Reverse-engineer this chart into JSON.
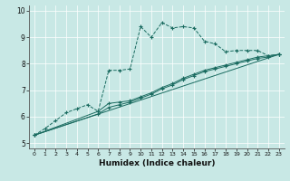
{
  "xlabel": "Humidex (Indice chaleur)",
  "bg_color": "#c8e8e5",
  "line_color": "#1a6b60",
  "grid_color": "#ffffff",
  "xlim": [
    -0.5,
    23.5
  ],
  "ylim": [
    4.8,
    10.2
  ],
  "xticks": [
    0,
    1,
    2,
    3,
    4,
    5,
    6,
    7,
    8,
    9,
    10,
    11,
    12,
    13,
    14,
    15,
    16,
    17,
    18,
    19,
    20,
    21,
    22,
    23
  ],
  "yticks": [
    5,
    6,
    7,
    8,
    9,
    10
  ],
  "series": [
    {
      "x": [
        0,
        1,
        2,
        3,
        4,
        5,
        6,
        7,
        8,
        9,
        10,
        11,
        12,
        13,
        14,
        15,
        16,
        17,
        18,
        19,
        20,
        21,
        22,
        23
      ],
      "y": [
        5.3,
        5.55,
        5.85,
        6.15,
        6.3,
        6.45,
        6.2,
        7.75,
        7.75,
        7.8,
        9.4,
        9.0,
        9.55,
        9.35,
        9.4,
        9.35,
        8.85,
        8.75,
        8.45,
        8.5,
        8.5,
        8.5,
        8.3,
        8.35
      ],
      "linestyle": "--"
    },
    {
      "x": [
        0,
        23
      ],
      "y": [
        5.3,
        8.35
      ],
      "linestyle": "-"
    },
    {
      "x": [
        0,
        6,
        7,
        8,
        9,
        10,
        11,
        12,
        13,
        14,
        15,
        16,
        17,
        18,
        19,
        20,
        21,
        22,
        23
      ],
      "y": [
        5.3,
        6.2,
        6.5,
        6.55,
        6.6,
        6.75,
        6.9,
        7.1,
        7.25,
        7.45,
        7.6,
        7.75,
        7.85,
        7.95,
        8.05,
        8.15,
        8.25,
        8.3,
        8.35
      ],
      "linestyle": "-"
    },
    {
      "x": [
        0,
        6,
        7,
        8,
        9,
        10,
        11,
        12,
        13,
        14,
        15,
        16,
        17,
        18,
        19,
        20,
        21,
        22,
        23
      ],
      "y": [
        5.3,
        6.1,
        6.35,
        6.45,
        6.55,
        6.7,
        6.85,
        7.05,
        7.2,
        7.4,
        7.55,
        7.7,
        7.8,
        7.9,
        8.0,
        8.1,
        8.2,
        8.25,
        8.35
      ],
      "linestyle": "-"
    }
  ]
}
